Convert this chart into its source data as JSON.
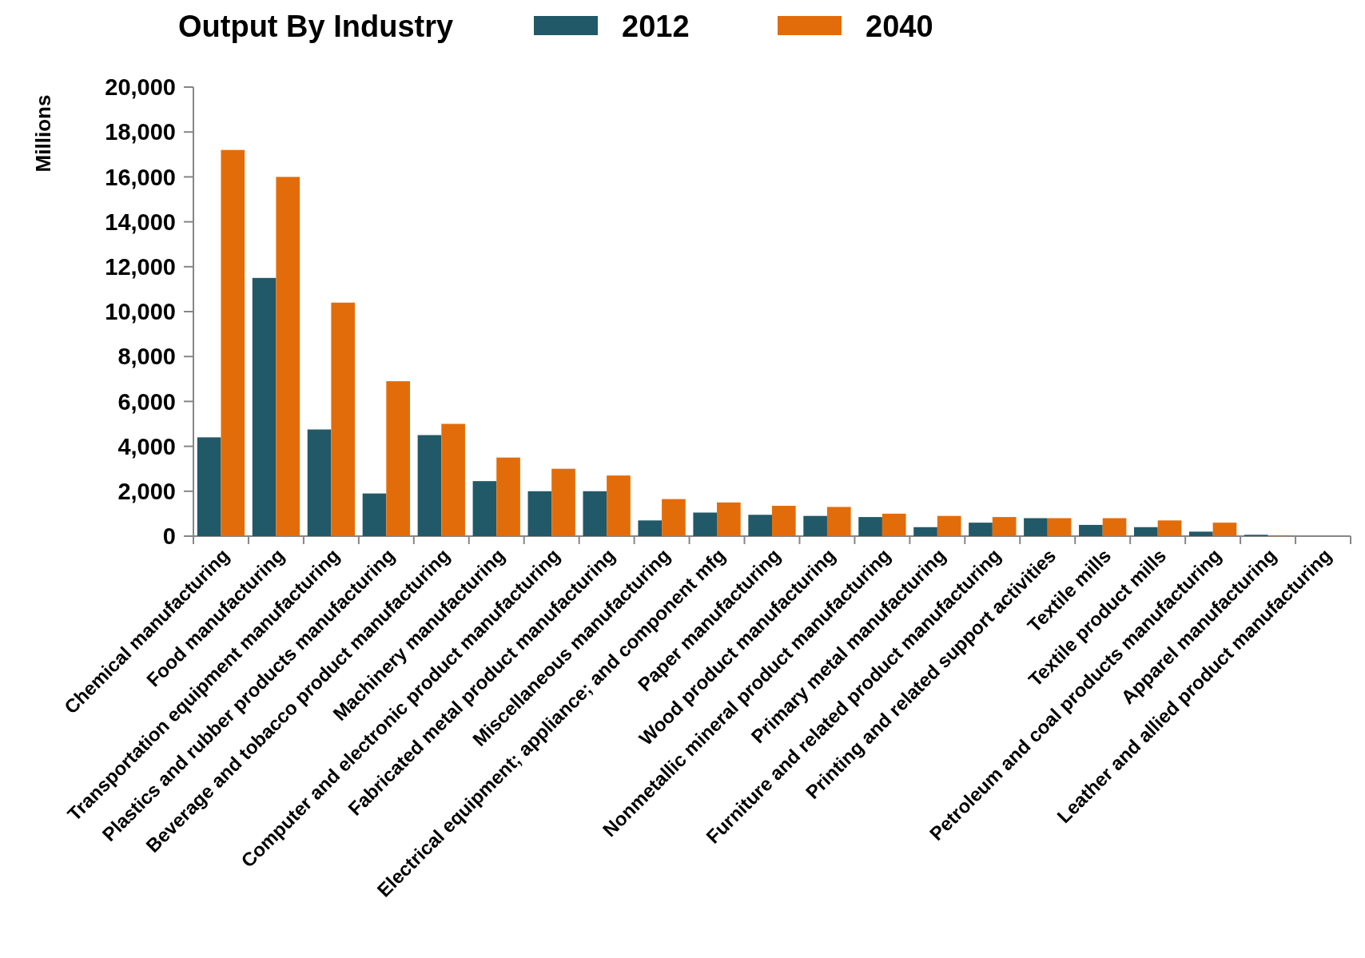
{
  "chart_data": {
    "type": "bar",
    "title": "Output By Industry",
    "ylabel": "Millions",
    "categories": [
      "Chemical manufacturing",
      "Food manufacturing",
      "Transportation equipment manufacturing",
      "Plastics and rubber products manufacturing",
      "Beverage and tobacco product manufacturing",
      "Machinery manufacturing",
      "Computer and electronic product manufacturing",
      "Fabricated metal product manufacturing",
      "Miscellaneous manufacturing",
      "Electrical equipment; appliance; and component mfg",
      "Paper manufacturing",
      "Wood product manufacturing",
      "Nonmetallic mineral product manufacturing",
      "Primary metal manufacturing",
      "Furniture and related product manufacturing",
      "Printing and related support activities",
      "Textile mills",
      "Textile product mills",
      "Petroleum and coal products manufacturing",
      "Apparel manufacturing",
      "Leather and allied product manufacturing"
    ],
    "series": [
      {
        "name": "2012",
        "color": "#215968",
        "values": [
          4400,
          11500,
          4750,
          1900,
          4500,
          2450,
          2000,
          2000,
          700,
          1050,
          950,
          900,
          850,
          400,
          600,
          800,
          500,
          400,
          200,
          60,
          null
        ]
      },
      {
        "name": "2040",
        "color": "#e36c0a",
        "values": [
          17200,
          16000,
          10400,
          6900,
          5000,
          3500,
          3000,
          2700,
          1650,
          1500,
          1350,
          1300,
          1000,
          900,
          850,
          800,
          800,
          700,
          600,
          40,
          null
        ]
      }
    ],
    "ylim": [
      0,
      20000
    ],
    "yticks": [
      0,
      {
        "value": 2000,
        "label": "2,000"
      },
      {
        "value": 4000,
        "label": "4,000"
      },
      {
        "value": 6000,
        "label": "6,000"
      },
      {
        "value": 8000,
        "label": "8,000"
      },
      {
        "value": 10000,
        "label": "10,000"
      },
      {
        "value": 12000,
        "label": "12,000"
      },
      {
        "value": 14000,
        "label": "14,000"
      },
      {
        "value": 16000,
        "label": "16,000"
      },
      {
        "value": 18000,
        "label": "18,000"
      },
      {
        "value": 20000,
        "label": "20,000"
      }
    ],
    "grid": false,
    "legend": "top"
  }
}
